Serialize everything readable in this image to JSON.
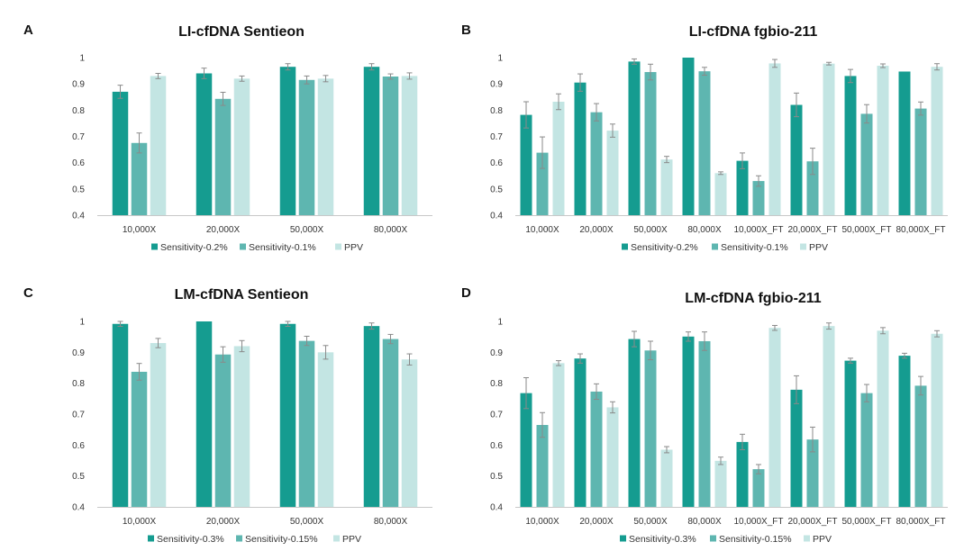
{
  "colors": {
    "series1": "#159c90",
    "series2": "#5eb6b0",
    "series3": "#c3e5e3",
    "error": "#8a8a8a",
    "axis": "#c8c8c8",
    "text": "#333333"
  },
  "chart_data": [
    {
      "panel": "A",
      "type": "bar",
      "title": "LI-cfDNA Sentieon",
      "categories": [
        "10,000X",
        "20,000X",
        "50,000X",
        "80,000X"
      ],
      "ylim": [
        0.4,
        1.0
      ],
      "yticks": [
        "0.4",
        "0.5",
        "0.6",
        "0.7",
        "0.8",
        "0.9",
        "1"
      ],
      "legend_position": "bottom",
      "series": [
        {
          "name": "Sensitivity-0.2%",
          "values": [
            0.87,
            0.94,
            0.965,
            0.965
          ],
          "errors": [
            0.025,
            0.02,
            0.012,
            0.012
          ]
        },
        {
          "name": "Sensitivity-0.1%",
          "values": [
            0.675,
            0.843,
            0.915,
            0.928
          ],
          "errors": [
            0.038,
            0.025,
            0.015,
            0.01
          ]
        },
        {
          "name": "PPV",
          "values": [
            0.93,
            0.92,
            0.92,
            0.93
          ],
          "errors": [
            0.01,
            0.01,
            0.012,
            0.012
          ]
        }
      ]
    },
    {
      "panel": "B",
      "type": "bar",
      "title": "LI-cfDNA fgbio-211",
      "categories": [
        "10,000X",
        "20,000X",
        "50,000X",
        "80,000X",
        "10,000X_FT",
        "20,000X_FT",
        "50,000X_FT",
        "80,000X_FT"
      ],
      "ylim": [
        0.4,
        1.0
      ],
      "yticks": [
        "0.4",
        "0.5",
        "0.6",
        "0.7",
        "0.8",
        "0.9",
        "1"
      ],
      "legend_position": "bottom",
      "series": [
        {
          "name": "Sensitivity-0.2%",
          "values": [
            0.782,
            0.905,
            0.985,
            1.0,
            0.607,
            0.82,
            0.93,
            0.947
          ],
          "errors": [
            0.05,
            0.033,
            0.01,
            0.0,
            0.03,
            0.045,
            0.025,
            0.0
          ]
        },
        {
          "name": "Sensitivity-0.1%",
          "values": [
            0.638,
            0.792,
            0.945,
            0.948,
            0.53,
            0.605,
            0.786,
            0.806
          ],
          "errors": [
            0.06,
            0.033,
            0.03,
            0.015,
            0.02,
            0.05,
            0.035,
            0.025
          ]
        },
        {
          "name": "PPV",
          "values": [
            0.832,
            0.722,
            0.612,
            0.56,
            0.978,
            0.977,
            0.969,
            0.965
          ],
          "errors": [
            0.03,
            0.025,
            0.012,
            0.005,
            0.015,
            0.005,
            0.007,
            0.012
          ]
        }
      ]
    },
    {
      "panel": "C",
      "type": "bar",
      "title": "LM-cfDNA Sentieon",
      "categories": [
        "10,000X",
        "20,000X",
        "50,000X",
        "80,000X"
      ],
      "ylim": [
        0.4,
        1.0
      ],
      "yticks": [
        "0.4",
        "0.5",
        "0.6",
        "0.7",
        "0.8",
        "0.9",
        "1"
      ],
      "legend_position": "bottom",
      "series": [
        {
          "name": "Sensitivity-0.3%",
          "values": [
            0.992,
            1.0,
            0.992,
            0.985
          ],
          "errors": [
            0.008,
            0.0,
            0.008,
            0.01
          ]
        },
        {
          "name": "Sensitivity-0.15%",
          "values": [
            0.837,
            0.893,
            0.937,
            0.943
          ],
          "errors": [
            0.027,
            0.025,
            0.015,
            0.015
          ]
        },
        {
          "name": "PPV",
          "values": [
            0.93,
            0.92,
            0.9,
            0.877
          ],
          "errors": [
            0.015,
            0.018,
            0.022,
            0.018
          ]
        }
      ]
    },
    {
      "panel": "D",
      "type": "bar",
      "title": "LM-cfDNA fgbio-211",
      "categories": [
        "10,000X",
        "20,000X",
        "50,000X",
        "80,000X",
        "10,000X_FT",
        "20,000X_FT",
        "50,000X_FT",
        "80,000X_FT"
      ],
      "ylim": [
        0.4,
        1.0
      ],
      "yticks": [
        "0.4",
        "0.5",
        "0.6",
        "0.7",
        "0.8",
        "0.9",
        "1"
      ],
      "legend_position": "bottom",
      "series": [
        {
          "name": "Sensitivity-0.3%",
          "values": [
            0.768,
            0.88,
            0.943,
            0.951,
            0.61,
            0.779,
            0.873,
            0.889
          ],
          "errors": [
            0.05,
            0.015,
            0.025,
            0.015,
            0.025,
            0.045,
            0.008,
            0.008
          ]
        },
        {
          "name": "Sensitivity-0.15%",
          "values": [
            0.665,
            0.773,
            0.906,
            0.936,
            0.522,
            0.618,
            0.768,
            0.792
          ],
          "errors": [
            0.04,
            0.025,
            0.03,
            0.03,
            0.015,
            0.04,
            0.028,
            0.03
          ]
        },
        {
          "name": "PPV",
          "values": [
            0.865,
            0.722,
            0.585,
            0.549,
            0.979,
            0.985,
            0.97,
            0.96
          ],
          "errors": [
            0.008,
            0.018,
            0.01,
            0.012,
            0.008,
            0.01,
            0.01,
            0.01
          ]
        }
      ]
    }
  ]
}
